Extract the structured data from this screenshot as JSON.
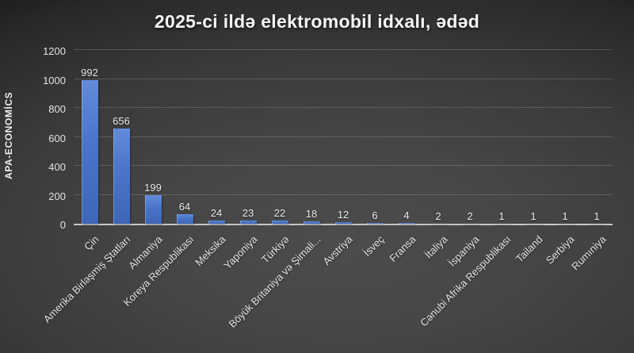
{
  "watermark": "APA-ECONOMİCS",
  "chart_data": {
    "type": "bar",
    "title": "2025-ci ildə elektromobil idxalı, ədəd",
    "categories": [
      "Çin",
      "Amerika Birləşmiş Ştatları",
      "Almaniya",
      "Koreya Respublikası",
      "Meksika",
      "Yaponiya",
      "Türkiyə",
      "Böyük Britaniya və Şimali...",
      "Avstriya",
      "İsveç",
      "Fransa",
      "İtaliya",
      "İspaniya",
      "Cənubi Afrika Respublikası",
      "Tailand",
      "Serbiya",
      "Rumıniya"
    ],
    "values": [
      992,
      656,
      199,
      64,
      24,
      23,
      22,
      18,
      12,
      6,
      4,
      2,
      2,
      1,
      1,
      1,
      1
    ],
    "xlabel": "",
    "ylabel": "",
    "ylim": [
      0,
      1200
    ],
    "yticks": [
      0,
      200,
      400,
      600,
      800,
      1000,
      1200
    ],
    "grid": true,
    "legend": false,
    "data_labels": true,
    "label_rotation_deg": -45,
    "colors": {
      "bar": "#4472c4",
      "bar_gradient_top": "#638cda",
      "bar_gradient_bottom": "#3d66b6",
      "gridline": "#5a5a5a",
      "axis_line": "#c6c6c6",
      "tick_text": "#e3e3e3",
      "title_text": "#f5f5f5",
      "background_center": "#4c4c4c",
      "background_edge": "#0f0f0f"
    }
  }
}
